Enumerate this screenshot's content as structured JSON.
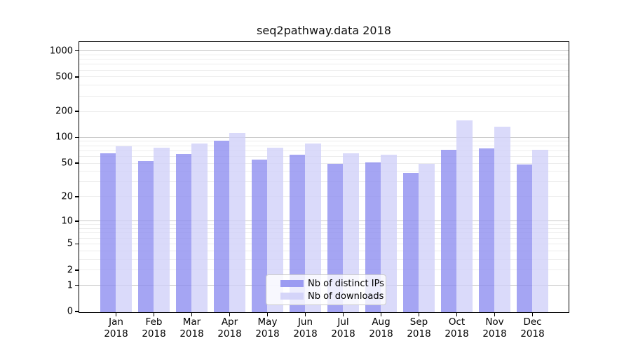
{
  "chart_data": {
    "type": "bar",
    "title": "seq2pathway.data 2018",
    "categories": [
      "Jan",
      "Feb",
      "Mar",
      "Apr",
      "May",
      "Jun",
      "Jul",
      "Aug",
      "Sep",
      "Oct",
      "Nov",
      "Dec"
    ],
    "category_year": "2018",
    "series": [
      {
        "name": "Nb of distinct IPs",
        "color": "#8c8cf0",
        "values": [
          66,
          54,
          65,
          93,
          56,
          63,
          50,
          52,
          39,
          72,
          75,
          49
        ]
      },
      {
        "name": "Nb of downloads",
        "color": "#cfcff8",
        "values": [
          80,
          76,
          86,
          114,
          77,
          85,
          66,
          63,
          50,
          160,
          135,
          72
        ]
      }
    ],
    "yscale": "log10(value+1)",
    "ylim": [
      0,
      1300
    ],
    "y_tick_values": [
      0,
      1,
      2,
      5,
      10,
      20,
      50,
      100,
      200,
      500,
      1000
    ],
    "y_tick_labels": [
      "0",
      "1",
      "2",
      "5",
      "10",
      "20",
      "50",
      "100",
      "200",
      "500",
      "1000"
    ],
    "y_major_gridlines": [
      1,
      10,
      100,
      1000
    ],
    "y_minor_gridlines": [
      2,
      3,
      4,
      5,
      6,
      7,
      8,
      9,
      20,
      30,
      40,
      50,
      60,
      70,
      80,
      90,
      200,
      300,
      400,
      500,
      600,
      700,
      800,
      900
    ],
    "grid": true,
    "legend_position": "lower-center-inside",
    "xlabel": "",
    "ylabel": ""
  },
  "colors": {
    "distinct_ips_bar": "#8c8cf0",
    "downloads_bar": "#cfcff8",
    "major_grid": "#c9c9c9",
    "minor_grid": "#ececec",
    "axis": "#000000",
    "legend_border": "#cccccc"
  }
}
